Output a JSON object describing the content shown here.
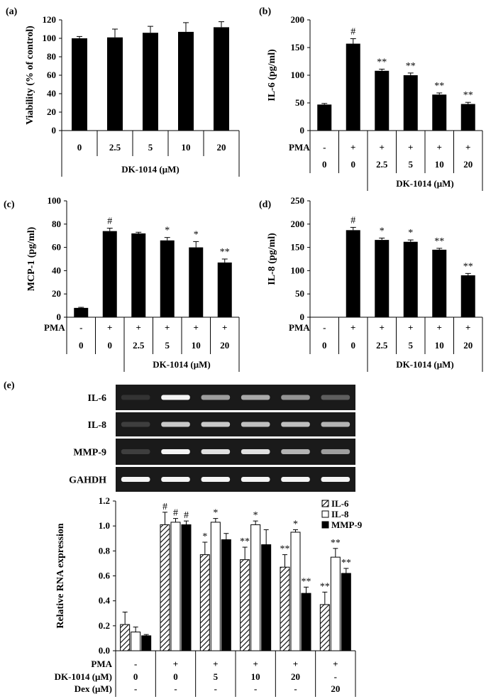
{
  "chart_data": [
    {
      "panel": "(a)",
      "type": "bar",
      "ylabel": "Viability  (% of control)",
      "ylim": [
        0,
        120
      ],
      "yticks": [
        0,
        20,
        40,
        60,
        80,
        100,
        120
      ],
      "categories": [
        "0",
        "2.5",
        "5",
        "10",
        "20"
      ],
      "values": [
        100,
        101,
        106,
        107,
        112
      ],
      "errors": [
        2,
        9,
        7,
        10,
        6
      ],
      "significance": [
        "",
        "",
        "",
        "",
        ""
      ],
      "xaxis_rows": [
        {
          "label": "",
          "values": [
            "0",
            "2.5",
            "5",
            "10",
            "20"
          ]
        }
      ],
      "group_label": "DK-1014 (μM)",
      "group_span": [
        0,
        4
      ]
    },
    {
      "panel": "(b)",
      "type": "bar",
      "ylabel": "IL-6  (pg/ml)",
      "ylim": [
        0,
        200
      ],
      "yticks": [
        0,
        50,
        100,
        150,
        200
      ],
      "categories": [
        "0",
        "0",
        "2.5",
        "5",
        "10",
        "20"
      ],
      "values": [
        47,
        157,
        108,
        100,
        65,
        48
      ],
      "errors": [
        2,
        9,
        3,
        4,
        3,
        3
      ],
      "significance": [
        "",
        "#",
        "**",
        "**",
        "**",
        "**"
      ],
      "xaxis_rows": [
        {
          "label": "PMA",
          "values": [
            "-",
            "+",
            "+",
            "+",
            "+",
            "+"
          ]
        },
        {
          "label": "",
          "values": [
            "0",
            "0",
            "2.5",
            "5",
            "10",
            "20"
          ]
        }
      ],
      "group_label": "DK-1014 (μM)",
      "group_span": [
        2,
        5
      ]
    },
    {
      "panel": "(c)",
      "type": "bar",
      "ylabel": "MCP-1  (pg/ml)",
      "ylim": [
        0,
        100
      ],
      "yticks": [
        0,
        20,
        40,
        60,
        80,
        100
      ],
      "categories": [
        "0",
        "0",
        "2.5",
        "5",
        "10",
        "20"
      ],
      "values": [
        8,
        74,
        72,
        66,
        60,
        47
      ],
      "errors": [
        0.5,
        2.5,
        1,
        2.5,
        5,
        3
      ],
      "significance": [
        "",
        "#",
        "",
        "*",
        "*",
        "**"
      ],
      "xaxis_rows": [
        {
          "label": "PMA",
          "values": [
            "-",
            "+",
            "+",
            "+",
            "+",
            "+"
          ]
        },
        {
          "label": "",
          "values": [
            "0",
            "0",
            "2.5",
            "5",
            "10",
            "20"
          ]
        }
      ],
      "group_label": "DK-1014 (μM)",
      "group_span": [
        2,
        5
      ]
    },
    {
      "panel": "(d)",
      "type": "bar",
      "ylabel": "IL-8  (pg/ml)",
      "ylim": [
        0,
        250
      ],
      "yticks": [
        0,
        50,
        100,
        150,
        200,
        250
      ],
      "categories": [
        "0",
        "0",
        "2.5",
        "5",
        "10",
        "20"
      ],
      "values": [
        0,
        187,
        166,
        162,
        145,
        90
      ],
      "errors": [
        0,
        6,
        4,
        4,
        3,
        4
      ],
      "significance": [
        "",
        "#",
        "*",
        "*",
        "**",
        "**"
      ],
      "xaxis_rows": [
        {
          "label": "PMA",
          "values": [
            "-",
            "+",
            "+",
            "+",
            "+",
            "+"
          ]
        },
        {
          "label": "",
          "values": [
            "0",
            "0",
            "2.5",
            "5",
            "10",
            "20"
          ]
        }
      ],
      "group_label": "DK-1014 (μM)",
      "group_span": [
        2,
        5
      ]
    },
    {
      "panel": "(e)",
      "type": "bar",
      "ylabel": "Relative RNA expression",
      "ylim": [
        0,
        1.2
      ],
      "yticks": [
        "0.0",
        "0.2",
        "0.4",
        "0.6",
        "0.8",
        "1.0",
        "1.2"
      ],
      "gel_bands": [
        "IL-6",
        "IL-8",
        "MMP-9",
        "GAHDH"
      ],
      "gel_intensity": [
        [
          0.05,
          0.95,
          0.55,
          0.6,
          0.5,
          0.25
        ],
        [
          0.1,
          0.75,
          0.75,
          0.7,
          0.7,
          0.65
        ],
        [
          0.1,
          0.95,
          0.85,
          0.85,
          0.65,
          0.55
        ],
        [
          0.95,
          0.95,
          0.95,
          0.95,
          0.95,
          0.95
        ]
      ],
      "legend": "top-right",
      "series": [
        {
          "name": "IL-6",
          "pattern": "hatched",
          "values": [
            0.21,
            1.01,
            0.77,
            0.73,
            0.67,
            0.37
          ],
          "errors": [
            0.1,
            0.1,
            0.1,
            0.1,
            0.1,
            0.1
          ],
          "significance": [
            "",
            "#",
            "*",
            "**",
            "**",
            "**"
          ]
        },
        {
          "name": "IL-8",
          "pattern": "white",
          "values": [
            0.15,
            1.03,
            1.03,
            1.01,
            0.95,
            0.75
          ],
          "errors": [
            0.04,
            0.03,
            0.03,
            0.03,
            0.02,
            0.07
          ],
          "significance": [
            "",
            "#",
            "*",
            "*",
            "*",
            "**"
          ]
        },
        {
          "name": "MMP-9",
          "pattern": "black",
          "values": [
            0.12,
            1.01,
            0.89,
            0.85,
            0.46,
            0.62
          ],
          "errors": [
            0.01,
            0.03,
            0.05,
            0.12,
            0.05,
            0.04
          ],
          "significance": [
            "",
            "#",
            "",
            "",
            "**",
            "**"
          ]
        }
      ],
      "xaxis_rows": [
        {
          "label": "PMA",
          "values": [
            "-",
            "+",
            "+",
            "+",
            "+",
            "+"
          ]
        },
        {
          "label": "DK-1014 (μM)",
          "values": [
            "0",
            "0",
            "5",
            "10",
            "20",
            "-"
          ]
        },
        {
          "label": "Dex (μM)",
          "values": [
            "-",
            "-",
            "-",
            "-",
            "-",
            "20"
          ]
        }
      ]
    }
  ]
}
